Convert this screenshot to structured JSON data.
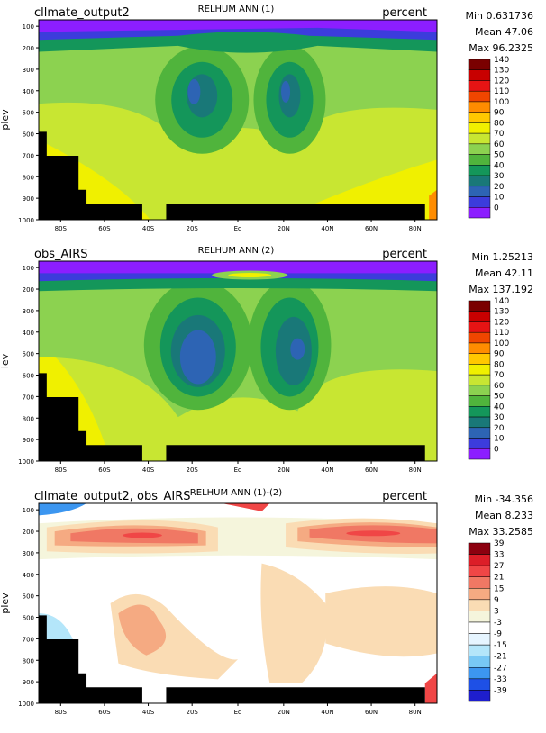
{
  "chart_data": [
    {
      "type": "heatmap",
      "title": "RELHUM ANN (1)",
      "left_title": "cllmate_output2",
      "units": "percent",
      "stats": {
        "min": "Min 0.631736",
        "mean": "Mean 47.06",
        "max": "Max 96.2325"
      },
      "ylabel": "plev",
      "x_ticks": [
        "80S",
        "60S",
        "40S",
        "20S",
        "Eq",
        "20N",
        "40N",
        "60N",
        "80N"
      ],
      "y_ticks": [
        "100",
        "200",
        "300",
        "400",
        "500",
        "600",
        "700",
        "800",
        "900",
        "1000"
      ],
      "xlim": [
        -90,
        90
      ],
      "ylim": [
        1000,
        70
      ],
      "colorbar": {
        "labels": [
          "140",
          "130",
          "120",
          "110",
          "100",
          "90",
          "80",
          "70",
          "60",
          "50",
          "40",
          "30",
          "20",
          "10",
          "0"
        ],
        "colors": [
          "#7a0000",
          "#c80000",
          "#e61414",
          "#f04600",
          "#ff8c00",
          "#ffc800",
          "#f0f000",
          "#c8e632",
          "#8cd250",
          "#50b43c",
          "#14965a",
          "#197878",
          "#2d64b4",
          "#3c3cdc",
          "#8c1eff"
        ]
      }
    },
    {
      "type": "heatmap",
      "title": "RELHUM ANN (2)",
      "left_title": "obs_AIRS",
      "units": "percent",
      "stats": {
        "min": "Min 1.25213",
        "mean": "Mean 42.11",
        "max": "Max 137.192"
      },
      "ylabel": "lev",
      "x_ticks": [
        "80S",
        "60S",
        "40S",
        "20S",
        "Eq",
        "20N",
        "40N",
        "60N",
        "80N"
      ],
      "y_ticks": [
        "100",
        "200",
        "300",
        "400",
        "500",
        "600",
        "700",
        "800",
        "900",
        "1000"
      ],
      "xlim": [
        -90,
        90
      ],
      "ylim": [
        1000,
        70
      ],
      "colorbar": {
        "labels": [
          "140",
          "130",
          "120",
          "110",
          "100",
          "90",
          "80",
          "70",
          "60",
          "50",
          "40",
          "30",
          "20",
          "10",
          "0"
        ],
        "colors": [
          "#7a0000",
          "#c80000",
          "#e61414",
          "#f04600",
          "#ff8c00",
          "#ffc800",
          "#f0f000",
          "#c8e632",
          "#8cd250",
          "#50b43c",
          "#14965a",
          "#197878",
          "#2d64b4",
          "#3c3cdc",
          "#8c1eff"
        ]
      }
    },
    {
      "type": "heatmap",
      "title": "RELHUM ANN (1)-(2)",
      "left_title": "cllmate_output2, obs_AIRS",
      "units": "percent",
      "stats": {
        "min": "Min -34.356",
        "mean": "Mean 8.233",
        "max": "Max 33.2585"
      },
      "ylabel": "plev",
      "x_ticks": [
        "80S",
        "60S",
        "40S",
        "20S",
        "Eq",
        "20N",
        "40N",
        "60N",
        "80N"
      ],
      "y_ticks": [
        "100",
        "200",
        "300",
        "400",
        "500",
        "600",
        "700",
        "800",
        "900",
        "1000"
      ],
      "xlim": [
        -90,
        90
      ],
      "ylim": [
        1000,
        70
      ],
      "colorbar": {
        "labels": [
          "39",
          "33",
          "27",
          "21",
          "15",
          "9",
          "3",
          "-3",
          "-9",
          "-15",
          "-21",
          "-27",
          "-33",
          "-39"
        ],
        "colors": [
          "#8c000f",
          "#dc1e28",
          "#f04646",
          "#f07864",
          "#f5aa82",
          "#fadcb4",
          "#f5f5dc",
          "#ffffff",
          "#e6f5ff",
          "#b4e6fa",
          "#78c8f5",
          "#3c96f0",
          "#1e50e6",
          "#1e1ecd"
        ]
      }
    }
  ]
}
